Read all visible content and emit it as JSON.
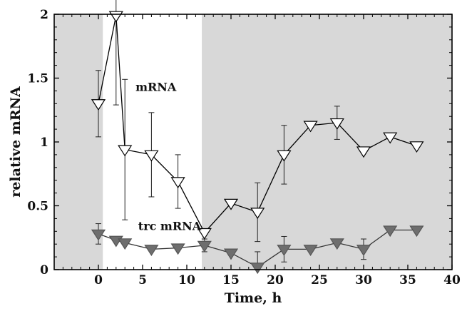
{
  "chart_data": {
    "type": "line",
    "xlabel": "Time, h",
    "ylabel": "relative mRNA",
    "xlim": [
      -5,
      40
    ],
    "ylim": [
      0,
      2
    ],
    "xticks": [
      0,
      5,
      10,
      15,
      20,
      25,
      30,
      35,
      40
    ],
    "yticks": [
      0,
      0.5,
      1,
      1.5,
      2
    ],
    "ytick_labels": [
      "0",
      "0.5",
      "1",
      "1.5",
      "2"
    ],
    "grid": false,
    "legend": "none",
    "shaded_intervals": [
      [
        -5,
        0.5
      ],
      [
        11.7,
        40
      ]
    ],
    "shade_color": "#d8d8d8",
    "series": [
      {
        "marker": "open-triangle-down",
        "color": "#000000",
        "fill": "#ffffff",
        "x": [
          0,
          2,
          3,
          6,
          9,
          12,
          15,
          18,
          21,
          24,
          27,
          30,
          33,
          36
        ],
        "y": [
          1.3,
          1.99,
          0.94,
          0.9,
          0.69,
          0.29,
          0.52,
          0.45,
          0.9,
          1.13,
          1.15,
          0.93,
          1.04,
          0.97
        ],
        "err": [
          0.26,
          0.7,
          0.55,
          0.33,
          0.21,
          0.0,
          0.0,
          0.23,
          0.23,
          0.0,
          0.13,
          0.0,
          0.0,
          0.0
        ]
      },
      {
        "marker": "filled-triangle-down",
        "color": "#666666",
        "fill": "#6e6e6e",
        "x": [
          0,
          2,
          3,
          6,
          9,
          12,
          15,
          18,
          21,
          24,
          27,
          30,
          33,
          36
        ],
        "y": [
          0.28,
          0.23,
          0.21,
          0.16,
          0.17,
          0.19,
          0.13,
          0.02,
          0.16,
          0.16,
          0.21,
          0.16,
          0.31,
          0.31
        ],
        "err": [
          0.08,
          0.0,
          0.0,
          0.0,
          0.0,
          0.05,
          0.0,
          0.12,
          0.1,
          0.0,
          0.0,
          0.08,
          0.0,
          0.0
        ]
      }
    ],
    "annotations": [
      {
        "text": "mRNA",
        "x": 4.2,
        "y": 1.4
      },
      {
        "text": "trc mRNA",
        "x": 4.5,
        "y": 0.31
      }
    ]
  }
}
